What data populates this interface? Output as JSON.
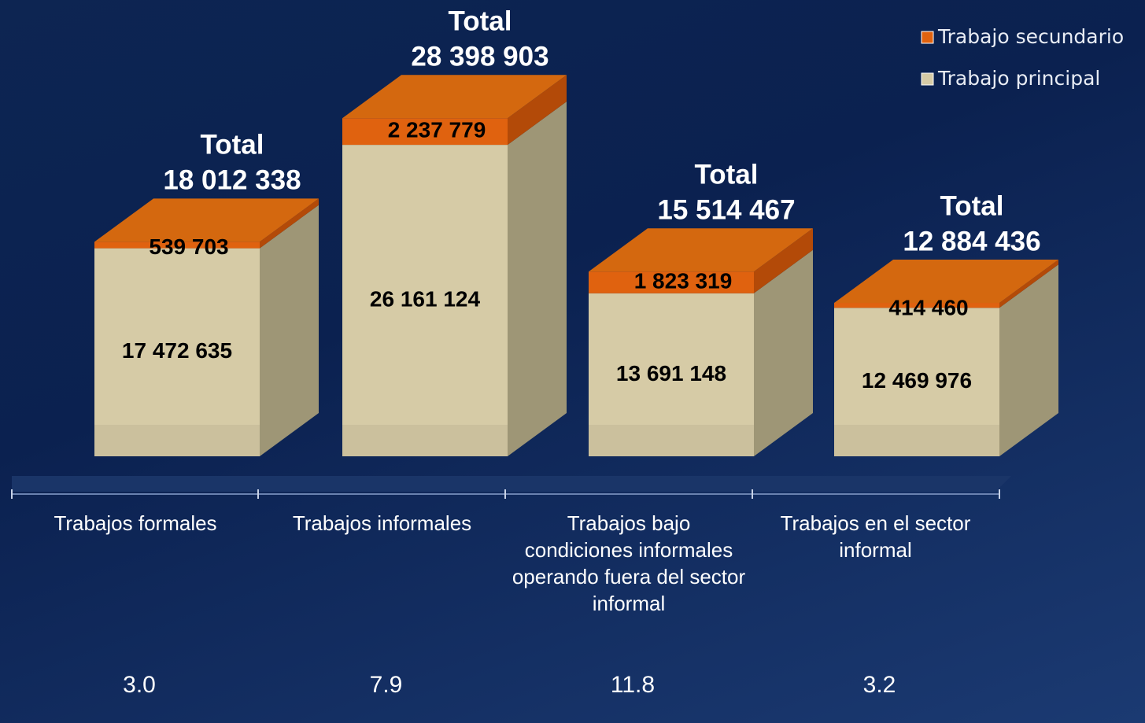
{
  "chart_data": {
    "type": "bar3d_stacked",
    "categories": [
      "Trabajos formales",
      "Trabajos informales",
      "Trabajos bajo condiciones informales operando fuera del sector informal",
      "Trabajos en el sector informal"
    ],
    "series": [
      {
        "name": "Trabajo principal",
        "color": "#d6cba6",
        "values": [
          17472635,
          26161124,
          13691148,
          12469976
        ],
        "value_labels": [
          "17 472 635",
          "26 161 124",
          "13 691 148",
          "12 469 976"
        ]
      },
      {
        "name": "Trabajo secundario",
        "color": "#e0620f",
        "values": [
          539703,
          2237779,
          1823319,
          414460
        ],
        "value_labels": [
          "539 703",
          "2 237 779",
          "1 823 319",
          "414 460"
        ]
      }
    ],
    "total_label": "Total",
    "totals": [
      18012338,
      28398903,
      15514467,
      12884436
    ],
    "total_labels": [
      "18 012 338",
      "28 398 903",
      "15 514 467",
      "12 884 436"
    ],
    "footer_values": [
      "3.0",
      "7.9",
      "11.8",
      "3.2"
    ],
    "ylim": [
      0,
      30000000
    ]
  }
}
